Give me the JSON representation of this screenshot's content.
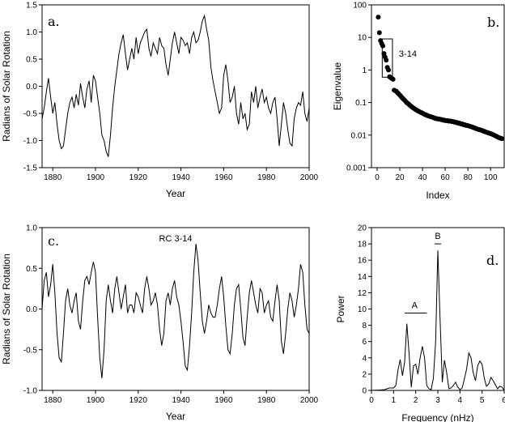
{
  "chart_data": [
    {
      "type": "line",
      "panel_label": "a.",
      "xlabel": "Year",
      "ylabel": "Radians of Solar Rotation",
      "xlim": [
        1875,
        2000
      ],
      "ylim": [
        -1.5,
        1.5
      ],
      "xticks": [
        1880,
        1900,
        1920,
        1940,
        1960,
        1980,
        2000
      ],
      "yticks": [
        -1.5,
        -1.0,
        -0.5,
        0.0,
        0.5,
        1.0,
        1.5
      ],
      "ytick_labels": [
        "-1.5",
        "-1.0",
        "-0.5",
        "0.0",
        "0.5",
        "1.0",
        "1.5"
      ],
      "series": [
        {
          "x": [
            1875,
            1876,
            1877,
            1878,
            1879,
            1880,
            1881,
            1882,
            1883,
            1884,
            1885,
            1886,
            1887,
            1888,
            1889,
            1890,
            1891,
            1892,
            1893,
            1894,
            1895,
            1896,
            1897,
            1898,
            1899,
            1900,
            1901,
            1902,
            1903,
            1904,
            1905,
            1906,
            1907,
            1908,
            1909,
            1910,
            1911,
            1912,
            1913,
            1914,
            1915,
            1916,
            1917,
            1918,
            1919,
            1920,
            1921,
            1922,
            1923,
            1924,
            1925,
            1926,
            1927,
            1928,
            1929,
            1930,
            1931,
            1932,
            1933,
            1934,
            1935,
            1936,
            1937,
            1938,
            1939,
            1940,
            1941,
            1942,
            1943,
            1944,
            1945,
            1946,
            1947,
            1948,
            1949,
            1950,
            1951,
            1952,
            1953,
            1954,
            1955,
            1956,
            1957,
            1958,
            1959,
            1960,
            1961,
            1962,
            1963,
            1964,
            1965,
            1966,
            1967,
            1968,
            1969,
            1970,
            1971,
            1972,
            1973,
            1974,
            1975,
            1976,
            1977,
            1978,
            1979,
            1980,
            1981,
            1982,
            1983,
            1984,
            1985,
            1986,
            1987,
            1988,
            1989,
            1990,
            1991,
            1992,
            1993,
            1994,
            1995,
            1996,
            1997,
            1998,
            1999,
            2000
          ],
          "y": [
            -0.6,
            -0.4,
            -0.1,
            0.15,
            -0.2,
            -0.5,
            -0.3,
            -0.7,
            -1.0,
            -1.15,
            -1.1,
            -0.8,
            -0.5,
            -0.3,
            -0.2,
            -0.4,
            -0.15,
            -0.35,
            0.05,
            -0.2,
            -0.4,
            -0.05,
            0.1,
            -0.3,
            0.2,
            0.1,
            -0.2,
            -0.5,
            -0.9,
            -1.0,
            -1.2,
            -1.3,
            -0.9,
            -0.4,
            0.0,
            0.3,
            0.6,
            0.8,
            0.95,
            0.6,
            0.3,
            0.5,
            0.7,
            0.5,
            0.9,
            0.6,
            0.8,
            0.9,
            1.0,
            1.05,
            0.7,
            0.55,
            0.8,
            0.7,
            0.6,
            0.9,
            0.75,
            0.7,
            0.4,
            0.2,
            0.5,
            0.8,
            1.0,
            0.8,
            0.6,
            0.9,
            0.85,
            0.75,
            0.8,
            0.6,
            0.9,
            1.0,
            0.8,
            0.85,
            1.0,
            1.2,
            1.3,
            1.05,
            0.85,
            0.35,
            0.1,
            -0.1,
            -0.3,
            -0.5,
            -0.4,
            0.2,
            0.4,
            0.1,
            -0.3,
            -0.2,
            0.0,
            -0.5,
            -0.7,
            -0.3,
            -0.6,
            -0.5,
            -0.8,
            -0.7,
            -0.1,
            -0.3,
            0.0,
            -0.4,
            -0.2,
            -0.05,
            -0.3,
            -0.2,
            -0.4,
            -0.5,
            -0.3,
            -0.2,
            -0.6,
            -1.1,
            -0.7,
            -0.3,
            -0.5,
            -0.8,
            -1.05,
            -1.1,
            -0.6,
            -0.4,
            -0.3,
            -0.35,
            -0.1,
            -0.5,
            -0.65,
            -0.4
          ]
        }
      ]
    },
    {
      "type": "scatter",
      "panel_label": "b.",
      "xlabel": "Index",
      "ylabel": "Eigenvalue",
      "yscale": "log",
      "xlim": [
        -5,
        112
      ],
      "ylim": [
        0.001,
        100
      ],
      "xticks": [
        0,
        20,
        40,
        60,
        80,
        100
      ],
      "yticks": [
        0.001,
        0.01,
        0.1,
        1,
        10,
        100
      ],
      "ytick_labels": [
        "0.001",
        "0.01",
        "0.1",
        "1",
        "10",
        "100"
      ],
      "annotation": "3-14",
      "box": {
        "x0": 4.5,
        "x1": 13.5,
        "y0": 0.6,
        "y1": 9.0
      },
      "series": [
        {
          "x": [
            1,
            2,
            3,
            4,
            5,
            6,
            7,
            8,
            9,
            10,
            11,
            12,
            13,
            14,
            15,
            16,
            17,
            18,
            19,
            20,
            21,
            22,
            23,
            24,
            25,
            26,
            27,
            28,
            29,
            30,
            31,
            32,
            33,
            34,
            35,
            36,
            37,
            38,
            39,
            40,
            41,
            42,
            43,
            44,
            45,
            46,
            47,
            48,
            49,
            50,
            51,
            52,
            53,
            54,
            55,
            56,
            57,
            58,
            59,
            60,
            61,
            62,
            63,
            64,
            65,
            66,
            67,
            68,
            69,
            70,
            71,
            72,
            73,
            74,
            75,
            76,
            77,
            78,
            79,
            80,
            81,
            82,
            83,
            84,
            85,
            86,
            87,
            88,
            89,
            90,
            91,
            92,
            93,
            94,
            95,
            96,
            97,
            98,
            99,
            100,
            101,
            102,
            103,
            104,
            105,
            106,
            107,
            108,
            109,
            110
          ],
          "y": [
            42,
            14,
            8,
            6.5,
            5.5,
            3.2,
            2.5,
            2.0,
            1.2,
            1.0,
            0.62,
            0.58,
            0.55,
            0.52,
            0.24,
            0.23,
            0.22,
            0.2,
            0.185,
            0.17,
            0.155,
            0.14,
            0.13,
            0.12,
            0.11,
            0.1,
            0.094,
            0.088,
            0.082,
            0.077,
            0.072,
            0.068,
            0.064,
            0.061,
            0.058,
            0.055,
            0.053,
            0.051,
            0.049,
            0.047,
            0.045,
            0.043,
            0.042,
            0.04,
            0.039,
            0.038,
            0.037,
            0.036,
            0.035,
            0.034,
            0.033,
            0.032,
            0.032,
            0.031,
            0.031,
            0.03,
            0.03,
            0.029,
            0.029,
            0.028,
            0.028,
            0.028,
            0.027,
            0.027,
            0.027,
            0.026,
            0.026,
            0.025,
            0.025,
            0.024,
            0.024,
            0.023,
            0.023,
            0.022,
            0.022,
            0.021,
            0.021,
            0.02,
            0.02,
            0.0195,
            0.019,
            0.0185,
            0.018,
            0.0175,
            0.017,
            0.0165,
            0.016,
            0.0155,
            0.015,
            0.0148,
            0.0145,
            0.014,
            0.0136,
            0.0132,
            0.0128,
            0.0124,
            0.012,
            0.0117,
            0.0114,
            0.0111,
            0.0108,
            0.0104,
            0.01,
            0.0096,
            0.0092,
            0.0088,
            0.0085,
            0.0082,
            0.008,
            0.0078
          ]
        }
      ]
    },
    {
      "type": "line",
      "panel_label": "c.",
      "xlabel": "Year",
      "ylabel": "Radians of Solar Rotation",
      "annotation": "RC 3-14",
      "xlim": [
        1875,
        2000
      ],
      "ylim": [
        -1.0,
        1.0
      ],
      "xticks": [
        1880,
        1900,
        1920,
        1940,
        1960,
        1980,
        2000
      ],
      "yticks": [
        -1.0,
        -0.5,
        0.0,
        0.5,
        1.0
      ],
      "ytick_labels": [
        "-1.0",
        "-0.5",
        "0.0",
        "0.5",
        "1.0"
      ],
      "series": [
        {
          "x": [
            1875,
            1876,
            1877,
            1878,
            1879,
            1880,
            1881,
            1882,
            1883,
            1884,
            1885,
            1886,
            1887,
            1888,
            1889,
            1890,
            1891,
            1892,
            1893,
            1894,
            1895,
            1896,
            1897,
            1898,
            1899,
            1900,
            1901,
            1902,
            1903,
            1904,
            1905,
            1906,
            1907,
            1908,
            1909,
            1910,
            1911,
            1912,
            1913,
            1914,
            1915,
            1916,
            1917,
            1918,
            1919,
            1920,
            1921,
            1922,
            1923,
            1924,
            1925,
            1926,
            1927,
            1928,
            1929,
            1930,
            1931,
            1932,
            1933,
            1934,
            1935,
            1936,
            1937,
            1938,
            1939,
            1940,
            1941,
            1942,
            1943,
            1944,
            1945,
            1946,
            1947,
            1948,
            1949,
            1950,
            1951,
            1952,
            1953,
            1954,
            1955,
            1956,
            1957,
            1958,
            1959,
            1960,
            1961,
            1962,
            1963,
            1964,
            1965,
            1966,
            1967,
            1968,
            1969,
            1970,
            1971,
            1972,
            1973,
            1974,
            1975,
            1976,
            1977,
            1978,
            1979,
            1980,
            1981,
            1982,
            1983,
            1984,
            1985,
            1986,
            1987,
            1988,
            1989,
            1990,
            1991,
            1992,
            1993,
            1994,
            1995,
            1996,
            1997,
            1998,
            1999,
            2000
          ],
          "y": [
            0.0,
            0.35,
            0.45,
            0.15,
            0.3,
            0.55,
            0.2,
            -0.3,
            -0.6,
            -0.65,
            -0.3,
            0.1,
            0.25,
            0.05,
            -0.05,
            0.1,
            0.2,
            -0.15,
            -0.25,
            0.1,
            0.35,
            0.4,
            0.3,
            0.45,
            0.58,
            0.45,
            -0.1,
            -0.6,
            -0.85,
            -0.5,
            0.1,
            0.3,
            0.1,
            -0.05,
            0.25,
            0.4,
            0.2,
            0.0,
            0.15,
            0.3,
            -0.05,
            0.05,
            0.05,
            -0.05,
            0.2,
            0.15,
            0.05,
            -0.05,
            0.25,
            0.4,
            0.25,
            0.05,
            0.1,
            0.2,
            0.05,
            -0.25,
            -0.45,
            -0.3,
            0.1,
            0.2,
            0.05,
            0.25,
            0.35,
            0.15,
            0.05,
            -0.15,
            -0.4,
            -0.7,
            -0.75,
            -0.45,
            -0.05,
            0.45,
            0.8,
            0.6,
            0.2,
            -0.15,
            -0.3,
            -0.15,
            0.05,
            -0.05,
            -0.1,
            -0.1,
            0.05,
            0.25,
            0.4,
            0.15,
            -0.2,
            -0.5,
            -0.55,
            -0.3,
            0.05,
            0.25,
            0.3,
            0.0,
            -0.35,
            -0.45,
            -0.1,
            0.2,
            0.35,
            0.2,
            0.05,
            -0.05,
            0.25,
            0.2,
            -0.05,
            0.05,
            0.1,
            -0.1,
            -0.15,
            0.1,
            0.3,
            0.1,
            -0.4,
            -0.55,
            -0.3,
            0.0,
            0.2,
            0.1,
            -0.1,
            0.05,
            0.25,
            0.55,
            0.45,
            0.05,
            -0.25,
            -0.3
          ]
        }
      ]
    },
    {
      "type": "line",
      "panel_label": "d.",
      "xlabel": "Frequency (nHz)",
      "ylabel": "Power",
      "xlim": [
        0,
        6
      ],
      "ylim": [
        0,
        20
      ],
      "xticks": [
        0,
        1,
        2,
        3,
        4,
        5,
        6
      ],
      "yticks": [
        0,
        2,
        4,
        6,
        8,
        10,
        12,
        14,
        16,
        18,
        20
      ],
      "ytick_labels": [
        "0",
        "2",
        "4",
        "6",
        "8",
        "10",
        "12",
        "14",
        "16",
        "18",
        "20"
      ],
      "annotations": [
        {
          "text": "A",
          "x": 1.95,
          "y": 9.9,
          "bar": [
            1.5,
            2.5
          ]
        },
        {
          "text": "B",
          "x": 3.0,
          "y": 18.4,
          "bar": [
            2.85,
            3.15
          ]
        }
      ],
      "series": [
        {
          "x": [
            0.0,
            0.2,
            0.4,
            0.6,
            0.8,
            1.0,
            1.1,
            1.2,
            1.3,
            1.4,
            1.5,
            1.6,
            1.7,
            1.8,
            1.9,
            2.0,
            2.1,
            2.2,
            2.3,
            2.4,
            2.5,
            2.6,
            2.7,
            2.8,
            2.9,
            3.0,
            3.1,
            3.2,
            3.3,
            3.4,
            3.5,
            3.6,
            3.7,
            3.8,
            3.9,
            4.0,
            4.1,
            4.2,
            4.3,
            4.4,
            4.5,
            4.6,
            4.7,
            4.8,
            4.9,
            5.0,
            5.1,
            5.2,
            5.3,
            5.4,
            5.5,
            5.6,
            5.7,
            5.8,
            5.9,
            6.0
          ],
          "y": [
            0.0,
            0.02,
            0.05,
            0.1,
            0.3,
            0.3,
            0.6,
            2.5,
            3.8,
            1.8,
            3.5,
            8.2,
            4.5,
            0.4,
            3.0,
            3.2,
            2.0,
            4.0,
            5.4,
            4.0,
            0.6,
            0.2,
            0.1,
            1.5,
            6.0,
            17.2,
            9.0,
            1.0,
            3.7,
            2.2,
            0.2,
            0.3,
            0.6,
            1.0,
            0.4,
            0.1,
            0.3,
            1.4,
            2.6,
            4.6,
            4.0,
            2.2,
            1.2,
            3.0,
            3.6,
            3.2,
            1.5,
            0.5,
            0.8,
            1.6,
            1.2,
            0.7,
            0.2,
            0.5,
            0.4,
            0.0
          ]
        }
      ]
    }
  ]
}
